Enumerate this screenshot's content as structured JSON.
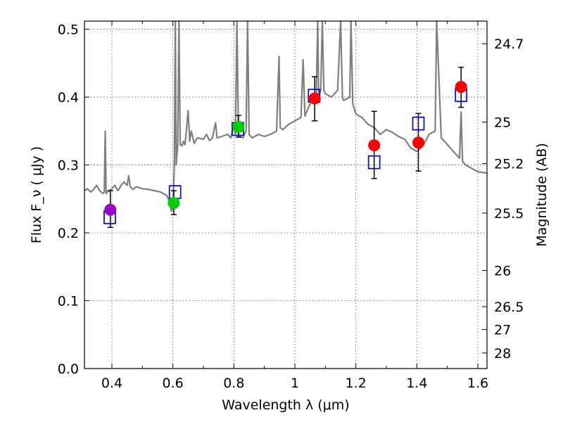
{
  "chart_data": {
    "type": "scatter",
    "title": "",
    "xlabel": "Wavelength λ (μm)",
    "ylabel": "Flux F_ν ( μJy )",
    "right_ylabel": "Magnitude (AB)",
    "xlim": [
      0.31,
      1.63
    ],
    "ylim": [
      0.0,
      0.512
    ],
    "grid": true,
    "x_ticks": [
      {
        "value": 0.4,
        "label": "0.4"
      },
      {
        "value": 0.6,
        "label": "0.6"
      },
      {
        "value": 0.8,
        "label": "0.8"
      },
      {
        "value": 1.0,
        "label": "1"
      },
      {
        "value": 1.2,
        "label": "1.2"
      },
      {
        "value": 1.4,
        "label": "1.4"
      },
      {
        "value": 1.6,
        "label": "1.6"
      }
    ],
    "y_ticks": [
      {
        "value": 0.0,
        "label": "0.0"
      },
      {
        "value": 0.1,
        "label": "0.1"
      },
      {
        "value": 0.2,
        "label": "0.2"
      },
      {
        "value": 0.3,
        "label": "0.3"
      },
      {
        "value": 0.4,
        "label": "0.4"
      },
      {
        "value": 0.5,
        "label": "0.5"
      }
    ],
    "magnitude_ticks": [
      {
        "value": 24.7,
        "label": "24.7"
      },
      {
        "value": 25.0,
        "label": "25"
      },
      {
        "value": 25.2,
        "label": "25.2"
      },
      {
        "value": 25.5,
        "label": "25.5"
      },
      {
        "value": 26.0,
        "label": "26"
      },
      {
        "value": 26.5,
        "label": "26.5"
      },
      {
        "value": 27.0,
        "label": "27"
      },
      {
        "value": 28.0,
        "label": "28"
      }
    ],
    "observed_points": [
      {
        "x": 0.395,
        "y": 0.234,
        "err_low": 0.208,
        "err_high": 0.262,
        "color": "#9900cc"
      },
      {
        "x": 0.603,
        "y": 0.244,
        "err_low": 0.227,
        "err_high": 0.262,
        "color": "#00cc00"
      },
      {
        "x": 0.815,
        "y": 0.356,
        "err_low": 0.341,
        "err_high": 0.373,
        "color": "#00cc00"
      },
      {
        "x": 1.065,
        "y": 0.398,
        "err_low": 0.365,
        "err_high": 0.43,
        "color": "#ff0000"
      },
      {
        "x": 1.26,
        "y": 0.329,
        "err_low": 0.28,
        "err_high": 0.379,
        "color": "#ff0000"
      },
      {
        "x": 1.405,
        "y": 0.333,
        "err_low": 0.291,
        "err_high": 0.376,
        "color": "#ff0000"
      },
      {
        "x": 1.545,
        "y": 0.415,
        "err_low": 0.385,
        "err_high": 0.444,
        "color": "#ff0000"
      }
    ],
    "model_photometry": [
      {
        "x": 0.393,
        "y": 0.223
      },
      {
        "x": 0.607,
        "y": 0.26
      },
      {
        "x": 0.813,
        "y": 0.353
      },
      {
        "x": 1.063,
        "y": 0.402
      },
      {
        "x": 1.26,
        "y": 0.304
      },
      {
        "x": 1.405,
        "y": 0.361
      },
      {
        "x": 1.545,
        "y": 0.403
      }
    ],
    "spectrum": {
      "color": "#7f7f7f",
      "points": [
        [
          0.31,
          0.262
        ],
        [
          0.32,
          0.265
        ],
        [
          0.33,
          0.26
        ],
        [
          0.34,
          0.264
        ],
        [
          0.35,
          0.27
        ],
        [
          0.36,
          0.262
        ],
        [
          0.37,
          0.258
        ],
        [
          0.375,
          0.26
        ],
        [
          0.378,
          0.35
        ],
        [
          0.381,
          0.258
        ],
        [
          0.39,
          0.262
        ],
        [
          0.4,
          0.265
        ],
        [
          0.41,
          0.27
        ],
        [
          0.42,
          0.262
        ],
        [
          0.43,
          0.27
        ],
        [
          0.44,
          0.275
        ],
        [
          0.45,
          0.27
        ],
        [
          0.455,
          0.284
        ],
        [
          0.46,
          0.268
        ],
        [
          0.47,
          0.264
        ],
        [
          0.48,
          0.268
        ],
        [
          0.5,
          0.265
        ],
        [
          0.52,
          0.264
        ],
        [
          0.54,
          0.262
        ],
        [
          0.56,
          0.26
        ],
        [
          0.58,
          0.255
        ],
        [
          0.59,
          0.245
        ],
        [
          0.595,
          0.232
        ],
        [
          0.6,
          0.236
        ],
        [
          0.605,
          0.3
        ],
        [
          0.608,
          0.512
        ],
        [
          0.611,
          0.3
        ],
        [
          0.616,
          0.33
        ],
        [
          0.62,
          0.512
        ],
        [
          0.624,
          0.33
        ],
        [
          0.63,
          0.328
        ],
        [
          0.635,
          0.335
        ],
        [
          0.64,
          0.33
        ],
        [
          0.65,
          0.38
        ],
        [
          0.655,
          0.335
        ],
        [
          0.66,
          0.35
        ],
        [
          0.67,
          0.332
        ],
        [
          0.68,
          0.34
        ],
        [
          0.7,
          0.338
        ],
        [
          0.71,
          0.345
        ],
        [
          0.72,
          0.336
        ],
        [
          0.73,
          0.34
        ],
        [
          0.74,
          0.362
        ],
        [
          0.745,
          0.34
        ],
        [
          0.76,
          0.342
        ],
        [
          0.78,
          0.345
        ],
        [
          0.79,
          0.34
        ],
        [
          0.8,
          0.36
        ],
        [
          0.805,
          0.345
        ],
        [
          0.81,
          0.512
        ],
        [
          0.815,
          0.345
        ],
        [
          0.82,
          0.342
        ],
        [
          0.83,
          0.34
        ],
        [
          0.84,
          0.35
        ],
        [
          0.845,
          0.512
        ],
        [
          0.85,
          0.345
        ],
        [
          0.86,
          0.34
        ],
        [
          0.88,
          0.345
        ],
        [
          0.9,
          0.342
        ],
        [
          0.92,
          0.345
        ],
        [
          0.94,
          0.35
        ],
        [
          0.948,
          0.46
        ],
        [
          0.952,
          0.355
        ],
        [
          0.96,
          0.352
        ],
        [
          0.98,
          0.36
        ],
        [
          1.0,
          0.365
        ],
        [
          1.02,
          0.37
        ],
        [
          1.027,
          0.455
        ],
        [
          1.033,
          0.372
        ],
        [
          1.04,
          0.38
        ],
        [
          1.05,
          0.39
        ],
        [
          1.06,
          0.395
        ],
        [
          1.07,
          0.4
        ],
        [
          1.075,
          0.512
        ],
        [
          1.078,
          0.4
        ],
        [
          1.085,
          0.41
        ],
        [
          1.09,
          0.512
        ],
        [
          1.095,
          0.41
        ],
        [
          1.1,
          0.405
        ],
        [
          1.12,
          0.4
        ],
        [
          1.14,
          0.41
        ],
        [
          1.15,
          0.512
        ],
        [
          1.156,
          0.4
        ],
        [
          1.16,
          0.395
        ],
        [
          1.18,
          0.4
        ],
        [
          1.184,
          0.512
        ],
        [
          1.19,
          0.39
        ],
        [
          1.2,
          0.375
        ],
        [
          1.22,
          0.37
        ],
        [
          1.24,
          0.36
        ],
        [
          1.26,
          0.355
        ],
        [
          1.28,
          0.345
        ],
        [
          1.3,
          0.352
        ],
        [
          1.32,
          0.348
        ],
        [
          1.34,
          0.342
        ],
        [
          1.36,
          0.338
        ],
        [
          1.38,
          0.325
        ],
        [
          1.4,
          0.32
        ],
        [
          1.42,
          0.328
        ],
        [
          1.44,
          0.345
        ],
        [
          1.46,
          0.35
        ],
        [
          1.465,
          0.512
        ],
        [
          1.48,
          0.34
        ],
        [
          1.5,
          0.33
        ],
        [
          1.52,
          0.32
        ],
        [
          1.54,
          0.31
        ],
        [
          1.545,
          0.378
        ],
        [
          1.55,
          0.305
        ],
        [
          1.56,
          0.3
        ],
        [
          1.58,
          0.295
        ],
        [
          1.6,
          0.29
        ],
        [
          1.63,
          0.288
        ]
      ]
    }
  }
}
